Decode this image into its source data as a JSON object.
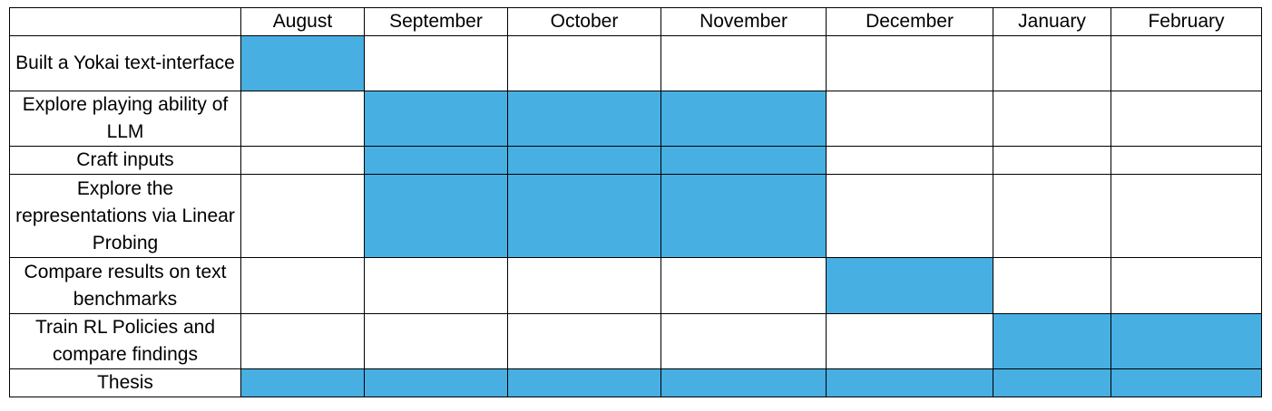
{
  "fill_color": "#47AFE2",
  "corner_label": "",
  "months": [
    "August",
    "September",
    "October",
    "November",
    "December",
    "January",
    "February"
  ],
  "tasks": [
    {
      "label": "Built a Yokai text-interface",
      "active": [
        0
      ]
    },
    {
      "label": "Explore playing ability of LLM",
      "active": [
        1,
        2,
        3
      ]
    },
    {
      "label": "Craft inputs",
      "active": [
        1,
        2,
        3
      ]
    },
    {
      "label": "Explore the representations via Linear Probing",
      "active": [
        1,
        2,
        3
      ]
    },
    {
      "label": "Compare results on text benchmarks",
      "active": [
        4
      ]
    },
    {
      "label": "Train RL Policies and compare findings",
      "active": [
        5,
        6
      ]
    },
    {
      "label": "Thesis",
      "active": [
        0,
        1,
        2,
        3,
        4,
        5,
        6
      ]
    }
  ]
}
